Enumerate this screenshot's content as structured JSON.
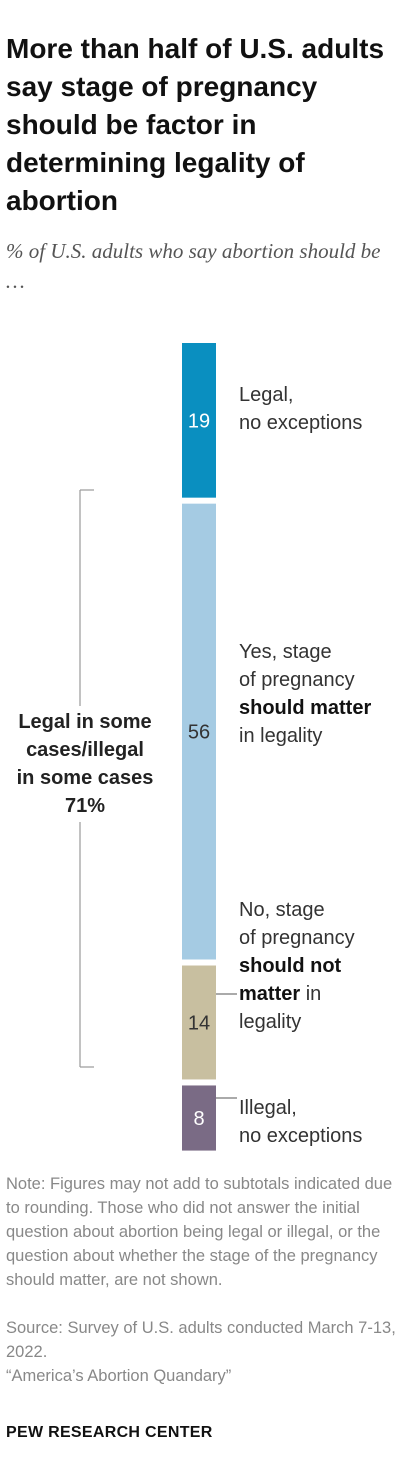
{
  "title": "More than half of U.S. adults say stage of pregnancy should be factor in determining legality of abortion",
  "subtitle": "% of U.S. adults who say abortion should be …",
  "chart_data": {
    "type": "bar",
    "orientation": "vertical-stacked",
    "unit": "%",
    "series": [
      {
        "label_plain": "Legal, no exceptions",
        "value": 19,
        "color": "#0a8fc0"
      },
      {
        "label_plain": "Yes, stage of pregnancy should matter in legality",
        "value": 56,
        "color": "#a5cbe3"
      },
      {
        "label_plain": "No, stage of pregnancy should not matter in legality",
        "value": 14,
        "color": "#c8bfa0"
      },
      {
        "label_plain": "Illegal, no exceptions",
        "value": 8,
        "color": "#7a6b85"
      }
    ],
    "bracket": {
      "label": "Legal in some cases/illegal in some cases",
      "value": "71%"
    }
  },
  "labels": {
    "legal_l1": "Legal,",
    "legal_l2": "no exceptions",
    "yes_l1": "Yes, stage",
    "yes_l2": "of pregnancy",
    "yes_bold": "should matter",
    "yes_l4": "in legality",
    "no_l1": "No, stage",
    "no_l2": "of pregnancy",
    "no_bold1": "should not",
    "no_bold2": "matter",
    "no_l4_tail": " in",
    "no_l5": "legality",
    "illegal_l1": "Illegal,",
    "illegal_l2": "no exceptions",
    "bracket_l1": "Legal in some",
    "bracket_l2": "cases/illegal",
    "bracket_l3": "in some cases",
    "bracket_l4": "71%"
  },
  "note": "Note: Figures may not add to subtotals indicated due to rounding. Those who did not answer the initial question about abortion being legal or illegal, or the question about whether the stage of the pregnancy should matter, are not shown.",
  "source": "Source: Survey of U.S. adults conducted March 7-13, 2022.",
  "report": "“America’s Abortion Quandary”",
  "org": "PEW RESEARCH CENTER"
}
